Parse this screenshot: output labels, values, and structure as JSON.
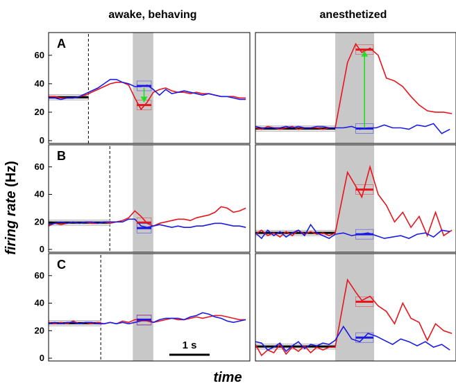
{
  "column_titles": [
    "awake, behaving",
    "anesthetized"
  ],
  "ylabel_italic": "firing rate",
  "ylabel_unit": " (Hz)",
  "xlabel": "time",
  "scalebar_label": "1 s",
  "colors": {
    "red": "#e8141c",
    "blue": "#1a1ae6",
    "green": "#22dd22",
    "shade": "#c8c8c8",
    "baseline": "#000000"
  },
  "chart_data": [
    {
      "type": "line",
      "panel": "A",
      "column": "awake, behaving",
      "ylim": [
        0,
        75
      ],
      "yticks": [
        0,
        20,
        40,
        60
      ],
      "xlim": [
        0,
        4.9
      ],
      "shade": [
        2.05,
        2.55
      ],
      "dashed_x": 0.97,
      "baseline": 30.5,
      "series": [
        {
          "color": "red",
          "x": [
            0,
            0.15,
            0.3,
            0.45,
            0.6,
            0.75,
            0.9,
            1.05,
            1.2,
            1.35,
            1.5,
            1.65,
            1.8,
            1.95,
            2.1,
            2.25,
            2.4,
            2.55,
            2.7,
            2.85,
            3.0,
            3.15,
            3.3,
            3.45,
            3.6,
            3.75,
            3.9,
            4.05,
            4.2,
            4.35,
            4.5,
            4.65,
            4.8
          ],
          "y": [
            31,
            31,
            30,
            30,
            30,
            31,
            32,
            34,
            36,
            38,
            40,
            41,
            41,
            39,
            30,
            22,
            27,
            34,
            36,
            37,
            35,
            34,
            34,
            33,
            34,
            33,
            33,
            32,
            31,
            31,
            31,
            30,
            30
          ]
        },
        {
          "color": "blue",
          "x": [
            0,
            0.15,
            0.3,
            0.45,
            0.6,
            0.75,
            0.9,
            1.05,
            1.2,
            1.35,
            1.5,
            1.65,
            1.8,
            1.95,
            2.1,
            2.25,
            2.4,
            2.55,
            2.7,
            2.85,
            3.0,
            3.15,
            3.3,
            3.45,
            3.6,
            3.75,
            3.9,
            4.05,
            4.2,
            4.35,
            4.5,
            4.65,
            4.8
          ],
          "y": [
            30,
            30,
            29,
            30,
            30,
            31,
            33,
            35,
            37,
            40,
            43,
            43,
            41,
            40,
            38,
            38,
            39,
            36,
            32,
            36,
            33,
            34,
            35,
            34,
            33,
            32,
            33,
            32,
            31,
            31,
            30,
            29,
            29
          ]
        }
      ],
      "means": [
        {
          "color": "red",
          "value": 25
        },
        {
          "color": "blue",
          "value": 38.5
        }
      ],
      "arrow": {
        "from": 37,
        "to": 27
      }
    },
    {
      "type": "line",
      "panel": "",
      "column": "anesthetized",
      "ylim": [
        0,
        75
      ],
      "yticks": [],
      "xlim": [
        0,
        4.9
      ],
      "shade": [
        1.95,
        2.9
      ],
      "dashed_x": null,
      "baseline": 8.5,
      "series": [
        {
          "color": "red",
          "x": [
            0,
            0.15,
            0.3,
            0.45,
            0.6,
            0.75,
            0.9,
            1.05,
            1.2,
            1.35,
            1.5,
            1.65,
            1.8,
            1.95,
            2.25,
            2.45,
            2.6,
            2.8,
            3.0,
            3.2,
            3.4,
            3.6,
            3.8,
            4.0,
            4.2,
            4.4,
            4.6,
            4.8
          ],
          "y": [
            9,
            8,
            10,
            9,
            8,
            9,
            10,
            8,
            9,
            9,
            9,
            8,
            9,
            9,
            55,
            68,
            62,
            65,
            60,
            44,
            42,
            38,
            31,
            25,
            21,
            20,
            20,
            19
          ]
        },
        {
          "color": "blue",
          "x": [
            0,
            0.15,
            0.3,
            0.45,
            0.6,
            0.75,
            0.9,
            1.05,
            1.2,
            1.35,
            1.5,
            1.65,
            1.8,
            1.95,
            2.15,
            2.35,
            2.55,
            2.75,
            2.95,
            3.15,
            3.35,
            3.55,
            3.75,
            3.95,
            4.15,
            4.35,
            4.55,
            4.75
          ],
          "y": [
            10,
            9,
            9,
            9,
            9,
            10,
            9,
            10,
            9,
            9,
            10,
            10,
            9,
            9,
            9,
            10,
            8,
            9,
            9,
            11,
            9,
            9,
            8,
            11,
            10,
            12,
            5,
            8
          ]
        }
      ],
      "means": [
        {
          "color": "red",
          "value": 64
        },
        {
          "color": "blue",
          "value": 8.5
        }
      ],
      "arrow": {
        "from": 9,
        "to": 63
      }
    },
    {
      "type": "line",
      "panel": "B",
      "column": "awake, behaving",
      "ylim": [
        0,
        75
      ],
      "yticks": [
        0,
        20,
        40,
        60
      ],
      "xlim": [
        0,
        4.9
      ],
      "shade": [
        2.05,
        2.55
      ],
      "dashed_x": 1.49,
      "baseline": 19.5,
      "series": [
        {
          "color": "red",
          "x": [
            0,
            0.15,
            0.3,
            0.45,
            0.6,
            0.75,
            0.9,
            1.05,
            1.2,
            1.35,
            1.5,
            1.65,
            1.8,
            1.95,
            2.1,
            2.25,
            2.4,
            2.55,
            2.7,
            2.85,
            3.0,
            3.15,
            3.3,
            3.45,
            3.6,
            3.75,
            3.9,
            4.05,
            4.2,
            4.35,
            4.5,
            4.65,
            4.8
          ],
          "y": [
            17,
            19,
            18,
            19,
            20,
            19,
            20,
            19,
            19,
            20,
            19,
            20,
            21,
            23,
            28,
            24,
            19,
            17,
            19,
            20,
            21,
            22,
            22,
            21,
            23,
            24,
            25,
            27,
            31,
            30,
            27,
            28,
            30
          ]
        },
        {
          "color": "blue",
          "x": [
            0,
            0.15,
            0.3,
            0.45,
            0.6,
            0.75,
            0.9,
            1.05,
            1.2,
            1.35,
            1.5,
            1.65,
            1.8,
            1.95,
            2.1,
            2.25,
            2.4,
            2.55,
            2.7,
            2.85,
            3.0,
            3.15,
            3.3,
            3.45,
            3.6,
            3.75,
            3.9,
            4.05,
            4.2,
            4.35,
            4.5,
            4.65,
            4.8
          ],
          "y": [
            18,
            19,
            20,
            19,
            20,
            19,
            20,
            20,
            19,
            20,
            20,
            20,
            20,
            22,
            22,
            17,
            16,
            17,
            18,
            17,
            16,
            17,
            16,
            16,
            17,
            17,
            18,
            19,
            19,
            18,
            17,
            17,
            16
          ]
        }
      ],
      "means": [
        {
          "color": "red",
          "value": 19.5
        },
        {
          "color": "blue",
          "value": 15.5
        }
      ],
      "arrow": null
    },
    {
      "type": "line",
      "panel": "",
      "column": "anesthetized",
      "ylim": [
        0,
        75
      ],
      "yticks": [],
      "xlim": [
        0,
        4.9
      ],
      "shade": [
        1.95,
        2.9
      ],
      "dashed_x": null,
      "baseline": 12,
      "series": [
        {
          "color": "red",
          "x": [
            0,
            0.15,
            0.3,
            0.45,
            0.6,
            0.75,
            0.9,
            1.05,
            1.2,
            1.35,
            1.5,
            1.65,
            1.8,
            1.95,
            2.25,
            2.45,
            2.6,
            2.8,
            3.0,
            3.2,
            3.4,
            3.6,
            3.8,
            4.0,
            4.2,
            4.4,
            4.6,
            4.8
          ],
          "y": [
            11,
            14,
            10,
            12,
            9,
            13,
            10,
            14,
            11,
            13,
            11,
            12,
            10,
            12,
            56,
            46,
            38,
            60,
            40,
            32,
            20,
            27,
            16,
            24,
            10,
            27,
            10,
            14
          ]
        },
        {
          "color": "blue",
          "x": [
            0,
            0.15,
            0.3,
            0.45,
            0.6,
            0.75,
            0.9,
            1.05,
            1.2,
            1.35,
            1.5,
            1.65,
            1.8,
            1.95,
            2.15,
            2.35,
            2.55,
            2.75,
            2.95,
            3.15,
            3.35,
            3.55,
            3.75,
            3.95,
            4.15,
            4.35,
            4.55,
            4.75
          ],
          "y": [
            12,
            8,
            14,
            10,
            13,
            9,
            12,
            14,
            10,
            18,
            12,
            10,
            8,
            11,
            12,
            10,
            11,
            12,
            10,
            8,
            9,
            10,
            8,
            11,
            12,
            9,
            14,
            13
          ]
        }
      ],
      "means": [
        {
          "color": "red",
          "value": 43.5
        },
        {
          "color": "blue",
          "value": 11
        }
      ],
      "arrow": null
    },
    {
      "type": "line",
      "panel": "C",
      "column": "awake, behaving",
      "ylim": [
        0,
        75
      ],
      "yticks": [
        0,
        20,
        40,
        60
      ],
      "xlim": [
        0,
        4.9
      ],
      "shade": [
        2.05,
        2.55
      ],
      "dashed_x": 1.27,
      "baseline": 25.5,
      "series": [
        {
          "color": "red",
          "x": [
            0,
            0.15,
            0.3,
            0.45,
            0.6,
            0.75,
            0.9,
            1.05,
            1.2,
            1.35,
            1.5,
            1.65,
            1.8,
            1.95,
            2.1,
            2.25,
            2.4,
            2.55,
            2.7,
            2.85,
            3.0,
            3.15,
            3.3,
            3.45,
            3.6,
            3.75,
            3.9,
            4.05,
            4.2,
            4.35,
            4.5,
            4.65,
            4.8
          ],
          "y": [
            26,
            25,
            26,
            25,
            27,
            25,
            26,
            25,
            26,
            25,
            26,
            25,
            27,
            26,
            28,
            28,
            27,
            26,
            27,
            28,
            29,
            28,
            28,
            29,
            30,
            29,
            30,
            31,
            31,
            30,
            29,
            28,
            28
          ]
        },
        {
          "color": "blue",
          "x": [
            0,
            0.15,
            0.3,
            0.45,
            0.6,
            0.75,
            0.9,
            1.05,
            1.2,
            1.35,
            1.5,
            1.65,
            1.8,
            1.95,
            2.1,
            2.25,
            2.4,
            2.55,
            2.7,
            2.85,
            3.0,
            3.15,
            3.3,
            3.45,
            3.6,
            3.75,
            3.9,
            4.05,
            4.2,
            4.35,
            4.5,
            4.65,
            4.8
          ],
          "y": [
            25,
            26,
            25,
            26,
            26,
            25,
            26,
            26,
            25,
            25,
            26,
            25,
            26,
            25,
            26,
            27,
            28,
            26,
            28,
            29,
            29,
            29,
            28,
            30,
            31,
            33,
            32,
            30,
            29,
            27,
            26,
            27,
            28
          ]
        }
      ],
      "means": [
        {
          "color": "red",
          "value": 27.5
        },
        {
          "color": "blue",
          "value": 28
        }
      ],
      "arrow": null
    },
    {
      "type": "line",
      "panel": "",
      "column": "anesthetized",
      "ylim": [
        0,
        75
      ],
      "yticks": [],
      "xlim": [
        0,
        4.9
      ],
      "shade": [
        1.95,
        2.9
      ],
      "dashed_x": null,
      "baseline": 8.5,
      "series": [
        {
          "color": "red",
          "x": [
            0,
            0.15,
            0.3,
            0.45,
            0.6,
            0.75,
            0.9,
            1.05,
            1.2,
            1.35,
            1.5,
            1.65,
            1.8,
            1.95,
            2.25,
            2.45,
            2.6,
            2.8,
            3.0,
            3.2,
            3.4,
            3.6,
            3.8,
            4.0,
            4.2,
            4.4,
            4.6,
            4.8
          ],
          "y": [
            10,
            2,
            6,
            4,
            10,
            3,
            8,
            5,
            9,
            4,
            8,
            6,
            8,
            8,
            57,
            48,
            42,
            45,
            38,
            34,
            25,
            40,
            29,
            26,
            13,
            25,
            20,
            18
          ]
        },
        {
          "color": "blue",
          "x": [
            0,
            0.15,
            0.3,
            0.45,
            0.6,
            0.75,
            0.9,
            1.05,
            1.2,
            1.35,
            1.5,
            1.65,
            1.8,
            1.95,
            2.15,
            2.35,
            2.55,
            2.75,
            2.95,
            3.15,
            3.35,
            3.55,
            3.75,
            3.95,
            4.15,
            4.35,
            4.55,
            4.75
          ],
          "y": [
            12,
            11,
            6,
            8,
            11,
            5,
            9,
            12,
            7,
            10,
            9,
            11,
            10,
            13,
            23,
            14,
            12,
            18,
            16,
            13,
            10,
            14,
            12,
            9,
            12,
            8,
            10,
            6
          ]
        }
      ],
      "means": [
        {
          "color": "red",
          "value": 41
        },
        {
          "color": "blue",
          "value": 15
        }
      ],
      "arrow": null
    }
  ]
}
